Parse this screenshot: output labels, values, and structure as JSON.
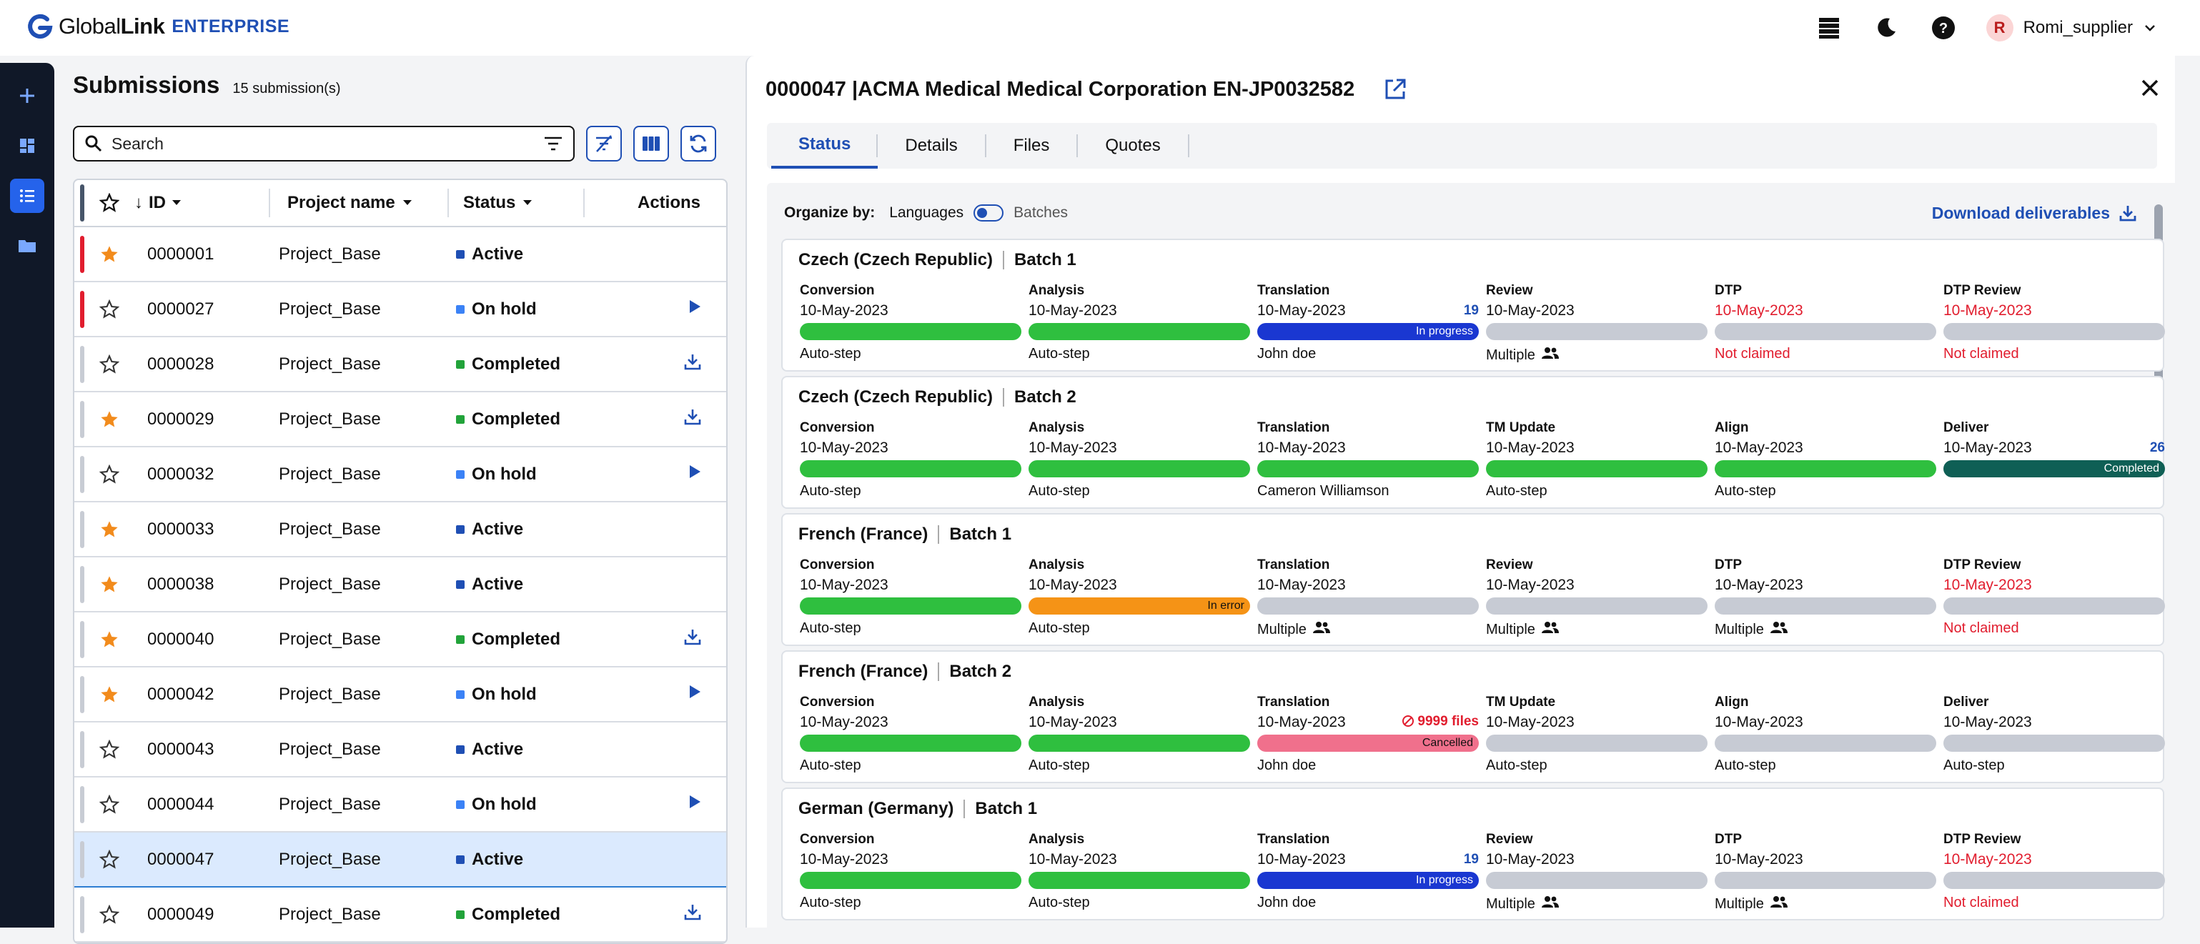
{
  "app": {
    "name_regular": "Global",
    "name_bold": "Link",
    "edition": "ENTERPRISE",
    "user": "Romi_supplier",
    "user_initial": "R"
  },
  "submissions": {
    "title": "Submissions",
    "count": "15 submission(s)",
    "search_placeholder": "Search",
    "columns": {
      "id": "ID",
      "sort_arrow": "↓",
      "project": "Project name",
      "status": "Status",
      "actions": "Actions"
    },
    "rows": [
      {
        "bar": "red",
        "starred": true,
        "id": "0000001",
        "project": "Project_Base",
        "status": "Active",
        "status_color": "#1f4fb4",
        "action": ""
      },
      {
        "bar": "red",
        "starred": false,
        "id": "0000027",
        "project": "Project_Base",
        "status": "On hold",
        "status_color": "#3b82f6",
        "action": "play"
      },
      {
        "bar": "grey",
        "starred": false,
        "id": "0000028",
        "project": "Project_Base",
        "status": "Completed",
        "status_color": "#22a33a",
        "action": "download"
      },
      {
        "bar": "grey",
        "starred": true,
        "id": "0000029",
        "project": "Project_Base",
        "status": "Completed",
        "status_color": "#22a33a",
        "action": "download"
      },
      {
        "bar": "grey",
        "starred": false,
        "id": "0000032",
        "project": "Project_Base",
        "status": "On hold",
        "status_color": "#3b82f6",
        "action": "play"
      },
      {
        "bar": "grey",
        "starred": true,
        "id": "0000033",
        "project": "Project_Base",
        "status": "Active",
        "status_color": "#1f4fb4",
        "action": ""
      },
      {
        "bar": "grey",
        "starred": true,
        "id": "0000038",
        "project": "Project_Base",
        "status": "Active",
        "status_color": "#1f4fb4",
        "action": ""
      },
      {
        "bar": "grey",
        "starred": true,
        "id": "0000040",
        "project": "Project_Base",
        "status": "Completed",
        "status_color": "#22a33a",
        "action": "download"
      },
      {
        "bar": "grey",
        "starred": true,
        "id": "0000042",
        "project": "Project_Base",
        "status": "On hold",
        "status_color": "#3b82f6",
        "action": "play"
      },
      {
        "bar": "grey",
        "starred": false,
        "id": "0000043",
        "project": "Project_Base",
        "status": "Active",
        "status_color": "#1f4fb4",
        "action": ""
      },
      {
        "bar": "grey",
        "starred": false,
        "id": "0000044",
        "project": "Project_Base",
        "status": "On hold",
        "status_color": "#3b82f6",
        "action": "play"
      },
      {
        "bar": "grey",
        "starred": false,
        "id": "0000047",
        "project": "Project_Base",
        "status": "Active",
        "status_color": "#1f4fb4",
        "action": "",
        "selected": true
      },
      {
        "bar": "grey",
        "starred": false,
        "id": "0000049",
        "project": "Project_Base",
        "status": "Completed",
        "status_color": "#22a33a",
        "action": "download"
      }
    ]
  },
  "panel": {
    "title": "0000047 |ACMA Medical Medical Corporation EN-JP0032582",
    "tabs": [
      "Status",
      "Details",
      "Files",
      "Quotes"
    ],
    "organize_label": "Organize by:",
    "org_languages": "Languages",
    "org_batches": "Batches",
    "download": "Download deliverables",
    "cards": [
      {
        "lang": "Czech (Czech Republic)",
        "batch": "Batch 1",
        "steps": [
          {
            "name": "Conversion",
            "date": "10-May-2023",
            "bar": "green",
            "bar_label": "",
            "assignee": "Auto-step"
          },
          {
            "name": "Analysis",
            "date": "10-May-2023",
            "bar": "green",
            "bar_label": "",
            "assignee": "Auto-step"
          },
          {
            "name": "Translation",
            "date": "10-May-2023",
            "count": "19",
            "bar": "blue",
            "bar_label": "In progress",
            "assignee": "John doe"
          },
          {
            "name": "Review",
            "date": "10-May-2023",
            "bar": "grey",
            "bar_label": "",
            "assignee": "Multiple",
            "multi": true
          },
          {
            "name": "DTP",
            "date": "10-May-2023",
            "date_red": true,
            "bar": "grey",
            "bar_label": "",
            "assignee": "Not claimed",
            "assignee_red": true
          },
          {
            "name": "DTP Review",
            "date": "10-May-2023",
            "date_red": true,
            "bar": "grey",
            "bar_label": "",
            "assignee": "Not claimed",
            "assignee_red": true
          }
        ]
      },
      {
        "lang": "Czech (Czech Republic)",
        "batch": "Batch 2",
        "steps": [
          {
            "name": "Conversion",
            "date": "10-May-2023",
            "bar": "green",
            "bar_label": "",
            "assignee": "Auto-step"
          },
          {
            "name": "Analysis",
            "date": "10-May-2023",
            "bar": "green",
            "bar_label": "",
            "assignee": "Auto-step"
          },
          {
            "name": "Translation",
            "date": "10-May-2023",
            "bar": "green",
            "bar_label": "",
            "assignee": "Cameron Williamson"
          },
          {
            "name": "TM Update",
            "date": "10-May-2023",
            "bar": "green",
            "bar_label": "",
            "assignee": "Auto-step"
          },
          {
            "name": "Align",
            "date": "10-May-2023",
            "bar": "green",
            "bar_label": "",
            "assignee": "Auto-step"
          },
          {
            "name": "Deliver",
            "date": "10-May-2023",
            "count": "26",
            "bar": "teal",
            "bar_label": "Completed",
            "assignee": ""
          }
        ]
      },
      {
        "lang": "French (France)",
        "batch": "Batch 1",
        "steps": [
          {
            "name": "Conversion",
            "date": "10-May-2023",
            "bar": "green",
            "bar_label": "",
            "assignee": "Auto-step"
          },
          {
            "name": "Analysis",
            "date": "10-May-2023",
            "bar": "orange",
            "bar_label": "In error",
            "assignee": "Auto-step"
          },
          {
            "name": "Translation",
            "date": "10-May-2023",
            "bar": "grey",
            "bar_label": "",
            "assignee": "Multiple",
            "multi": true
          },
          {
            "name": "Review",
            "date": "10-May-2023",
            "bar": "grey",
            "bar_label": "",
            "assignee": "Multiple",
            "multi": true
          },
          {
            "name": "DTP",
            "date": "10-May-2023",
            "bar": "grey",
            "bar_label": "",
            "assignee": "Multiple",
            "multi": true
          },
          {
            "name": "DTP Review",
            "date": "10-May-2023",
            "date_red": true,
            "bar": "grey",
            "bar_label": "",
            "assignee": "Not claimed",
            "assignee_red": true
          }
        ]
      },
      {
        "lang": "French (France)",
        "batch": "Batch 2",
        "steps": [
          {
            "name": "Conversion",
            "date": "10-May-2023",
            "bar": "green",
            "bar_label": "",
            "assignee": "Auto-step"
          },
          {
            "name": "Analysis",
            "date": "10-May-2023",
            "bar": "green",
            "bar_label": "",
            "assignee": "Auto-step"
          },
          {
            "name": "Translation",
            "date": "10-May-2023",
            "count": "9999 files",
            "count_err": true,
            "bar": "pink",
            "bar_label": "Cancelled",
            "assignee": "John doe"
          },
          {
            "name": "TM Update",
            "date": "10-May-2023",
            "bar": "grey",
            "bar_label": "",
            "assignee": "Auto-step"
          },
          {
            "name": "Align",
            "date": "10-May-2023",
            "bar": "grey",
            "bar_label": "",
            "assignee": "Auto-step"
          },
          {
            "name": "Deliver",
            "date": "10-May-2023",
            "bar": "grey",
            "bar_label": "",
            "assignee": "Auto-step"
          }
        ]
      },
      {
        "lang": "German (Germany)",
        "batch": "Batch 1",
        "steps": [
          {
            "name": "Conversion",
            "date": "10-May-2023",
            "bar": "green",
            "bar_label": "",
            "assignee": "Auto-step"
          },
          {
            "name": "Analysis",
            "date": "10-May-2023",
            "bar": "green",
            "bar_label": "",
            "assignee": "Auto-step"
          },
          {
            "name": "Translation",
            "date": "10-May-2023",
            "count": "19",
            "bar": "blue",
            "bar_label": "In progress",
            "assignee": "John doe"
          },
          {
            "name": "Review",
            "date": "10-May-2023",
            "bar": "grey",
            "bar_label": "",
            "assignee": "Multiple",
            "multi": true
          },
          {
            "name": "DTP",
            "date": "10-May-2023",
            "bar": "grey",
            "bar_label": "",
            "assignee": "Multiple",
            "multi": true
          },
          {
            "name": "DTP Review",
            "date": "10-May-2023",
            "date_red": true,
            "bar": "grey",
            "bar_label": "",
            "assignee": "Not claimed",
            "assignee_red": true
          }
        ]
      }
    ]
  }
}
